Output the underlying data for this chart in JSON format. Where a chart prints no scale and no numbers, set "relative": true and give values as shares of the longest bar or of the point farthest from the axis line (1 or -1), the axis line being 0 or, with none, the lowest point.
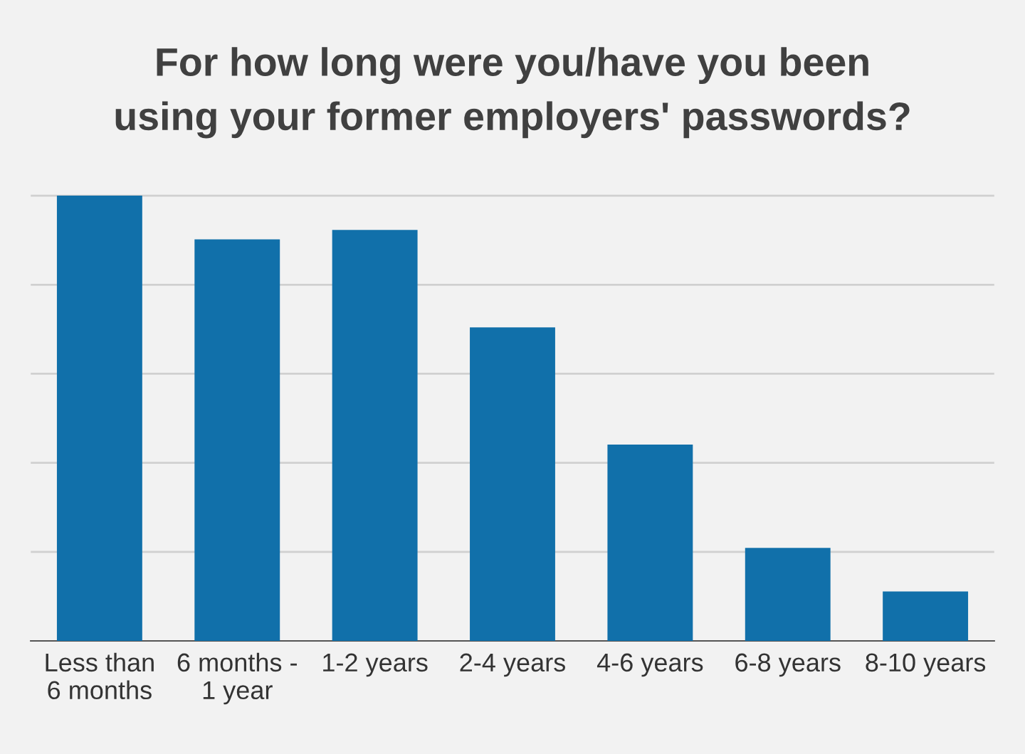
{
  "chart_data": {
    "type": "bar",
    "title": "For how long were you/have you been\nusing your former employers' passwords?",
    "categories": [
      "Less than\n6 months",
      "6 months -\n1 year",
      "1-2 years",
      "2-4 years",
      "4-6 years",
      "6-8 years",
      "8-10 years"
    ],
    "values": [
      1,
      0.902,
      0.923,
      0.704,
      0.441,
      0.209,
      0.111
    ],
    "color": "#1170aa",
    "relative": true,
    "grid": "y",
    "legend": false
  }
}
